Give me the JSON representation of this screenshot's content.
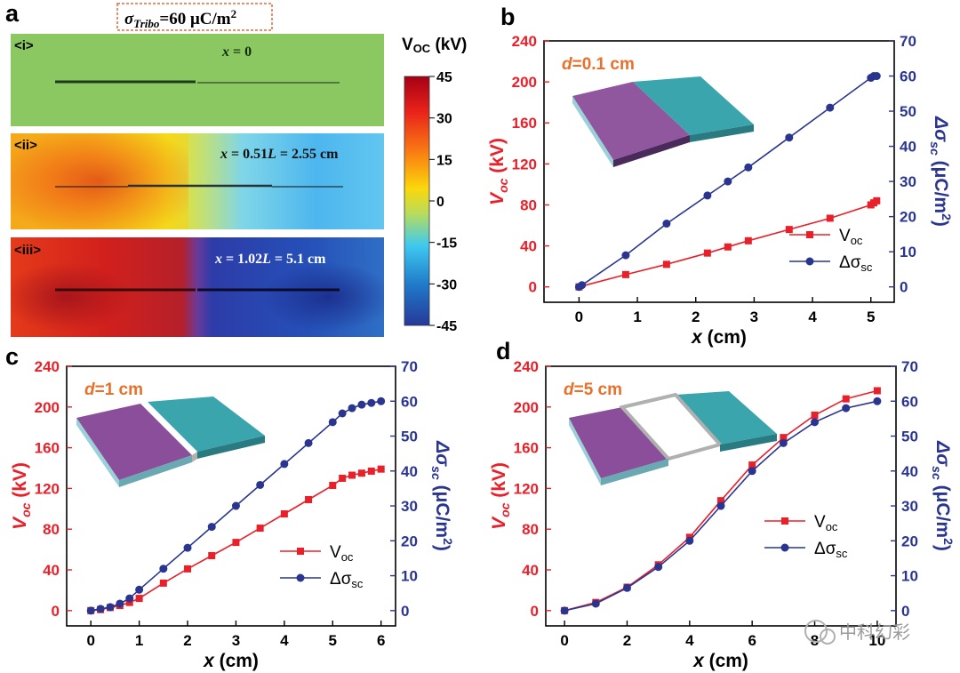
{
  "panel_labels": {
    "a": "a",
    "b": "b",
    "c": "c",
    "d": "d"
  },
  "panel_a": {
    "header_sigma": "σ",
    "header_sub": "Tribo",
    "header_value": "=60 μC/m",
    "header_sup": "2",
    "maps": [
      {
        "tag": "<i>",
        "x_prefix": "x",
        "x_text": " = 0",
        "x_mid": ""
      },
      {
        "tag": "<ii>",
        "x_prefix": "x",
        "x_text": " = 0.51",
        "x_mid": "L",
        "x_tail": " = 2.55 cm"
      },
      {
        "tag": "<iii>",
        "x_prefix": "x",
        "x_text": " = 1.02",
        "x_mid": "L",
        "x_tail": " = 5.1 cm"
      }
    ],
    "colorbar": {
      "title_main": "V",
      "title_sub": "OC",
      "title_unit": " (kV)",
      "ticks": [
        "45",
        "30",
        "15",
        "0",
        "-15",
        "-30",
        "-45"
      ],
      "colors": [
        "#a50016",
        "#e8221a",
        "#f97a13",
        "#fbd70b",
        "#b9dc5b",
        "#3ec9f0",
        "#1f78c8",
        "#26399b"
      ]
    }
  },
  "legend": {
    "voc_main": "V",
    "voc_sub": "oc",
    "dsig_main": "Δσ",
    "dsig_sub": "sc"
  },
  "axis_text": {
    "x_var": "x",
    "x_unit": " (cm)",
    "yl_main": "V",
    "yl_sub": "oc",
    "yl_unit": " (kV)",
    "yr_main": "Δσ",
    "yr_sub": "sc",
    "yr_unit": " (μC/m",
    "yr_sup": "2",
    "yr_close": ")"
  },
  "colors": {
    "voc": "#e8202a",
    "dsig": "#2a3590",
    "purple": "#8a4e9a",
    "teal": "#3aa5ad",
    "green_map": "#8bc862"
  },
  "watermark": "中科幻彩",
  "chart_data": [
    {
      "id": "b",
      "type": "line",
      "panel": "b",
      "d_label_var": "d",
      "d_label_val": "=0.1 cm",
      "xlim": [
        -0.6,
        5.4
      ],
      "xticks": [
        "0",
        "1",
        "2",
        "3",
        "4",
        "5"
      ],
      "ylim_left": [
        -15,
        240
      ],
      "yticks_left": [
        "0",
        "40",
        "80",
        "120",
        "160",
        "200",
        "240"
      ],
      "ylim_right": [
        -4.375,
        70
      ],
      "yticks_right": [
        "0",
        "10",
        "20",
        "30",
        "40",
        "50",
        "60",
        "70"
      ],
      "series": [
        {
          "name": "Voc",
          "axis": "left",
          "x": [
            0,
            0.8,
            1.5,
            2.2,
            2.55,
            2.9,
            3.6,
            4.3,
            5.0,
            5.05,
            5.1
          ],
          "y": [
            0,
            12,
            22,
            33,
            39,
            45,
            56,
            67,
            80,
            82,
            84
          ]
        },
        {
          "name": "Δσsc",
          "axis": "right",
          "x": [
            0,
            0.05,
            0.8,
            1.5,
            2.2,
            2.55,
            2.9,
            3.6,
            4.3,
            5.0,
            5.05,
            5.1
          ],
          "y": [
            0,
            0.5,
            9,
            18,
            26,
            30,
            34,
            42.5,
            51,
            59.5,
            60,
            60
          ]
        }
      ]
    },
    {
      "id": "c",
      "type": "line",
      "panel": "c",
      "d_label_var": "d",
      "d_label_val": "=1 cm",
      "xlim": [
        -0.5,
        6.3
      ],
      "xticks": [
        "0",
        "1",
        "2",
        "3",
        "4",
        "5",
        "6"
      ],
      "ylim_left": [
        -15,
        240
      ],
      "yticks_left": [
        "0",
        "40",
        "80",
        "120",
        "160",
        "200",
        "240"
      ],
      "ylim_right": [
        -4.375,
        70
      ],
      "yticks_right": [
        "0",
        "10",
        "20",
        "30",
        "40",
        "50",
        "60",
        "70"
      ],
      "series": [
        {
          "name": "Voc",
          "axis": "left",
          "x": [
            0,
            0.2,
            0.4,
            0.6,
            0.8,
            1.0,
            1.5,
            2.0,
            2.5,
            3.0,
            3.5,
            4.0,
            4.5,
            5.0,
            5.2,
            5.4,
            5.6,
            5.8,
            6.0
          ],
          "y": [
            0,
            1,
            3,
            5,
            8,
            12,
            27,
            41,
            54,
            67,
            81,
            95,
            109,
            123,
            130,
            133,
            135,
            137,
            139
          ]
        },
        {
          "name": "Δσsc",
          "axis": "right",
          "x": [
            0,
            0.2,
            0.4,
            0.6,
            0.8,
            1.0,
            1.5,
            2.0,
            2.5,
            3.0,
            3.5,
            4.0,
            4.5,
            5.0,
            5.2,
            5.4,
            5.6,
            5.8,
            6.0
          ],
          "y": [
            0,
            0.5,
            1,
            2,
            3.5,
            6,
            12,
            18,
            24,
            30,
            36,
            42,
            48,
            54,
            56.5,
            58,
            59,
            59.5,
            60
          ]
        }
      ]
    },
    {
      "id": "d",
      "type": "line",
      "panel": "d",
      "d_label_var": "d",
      "d_label_val": "=5 cm",
      "xlim": [
        -0.6,
        10.6
      ],
      "xticks": [
        "0",
        "2",
        "4",
        "6",
        "8",
        "10"
      ],
      "ylim_left": [
        -15,
        240
      ],
      "yticks_left": [
        "0",
        "40",
        "80",
        "120",
        "160",
        "200",
        "240"
      ],
      "ylim_right": [
        -4.375,
        70
      ],
      "yticks_right": [
        "0",
        "10",
        "20",
        "30",
        "40",
        "50",
        "60",
        "70"
      ],
      "series": [
        {
          "name": "Voc",
          "axis": "left",
          "x": [
            0,
            1,
            2,
            3,
            4,
            5,
            6,
            7,
            8,
            9,
            10
          ],
          "y": [
            0,
            8,
            23,
            45,
            72,
            108,
            143,
            170,
            192,
            208,
            216
          ]
        },
        {
          "name": "Δσsc",
          "axis": "right",
          "x": [
            0,
            1,
            2,
            3,
            4,
            5,
            6,
            7,
            8,
            9,
            10
          ],
          "y": [
            0,
            2,
            6.5,
            12.5,
            20,
            30,
            40,
            48,
            54,
            58,
            60
          ]
        }
      ]
    }
  ]
}
